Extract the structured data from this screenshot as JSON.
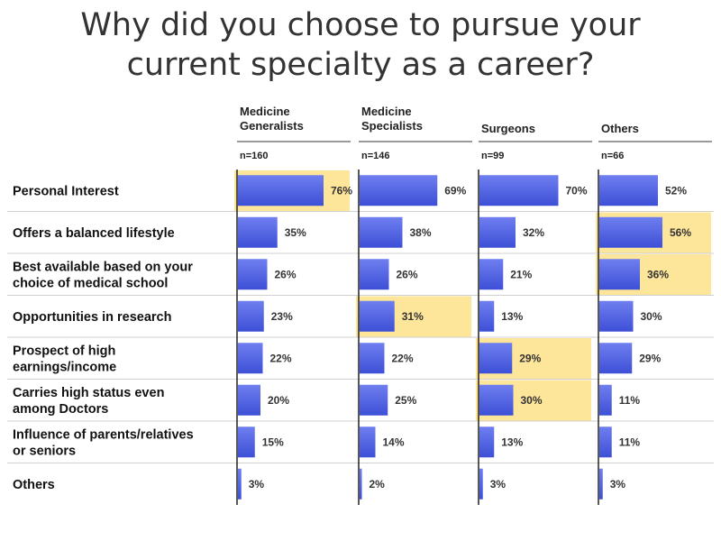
{
  "title_line1": "Why did you choose to pursue your",
  "title_line2": "current specialty as a career?",
  "chart_data": {
    "type": "bar",
    "orientation": "horizontal",
    "title": "Why did you choose to pursue your current specialty as a career?",
    "categories": [
      [
        "Personal Interest"
      ],
      [
        "Offers a balanced lifestyle"
      ],
      [
        "Best available based on your",
        "choice of medical school"
      ],
      [
        "Opportunities in research"
      ],
      [
        "Prospect of high",
        "earnings/income"
      ],
      [
        "Carries high status even",
        "among Doctors"
      ],
      [
        "Influence of parents/relatives",
        "or seniors"
      ],
      [
        "Others"
      ]
    ],
    "series": [
      {
        "name": [
          "Medicine",
          "Generalists"
        ],
        "n_label": "n=160",
        "values": [
          76,
          35,
          26,
          23,
          22,
          20,
          15,
          3
        ],
        "value_labels": [
          "76%",
          "35%",
          "26%",
          "23%",
          "22%",
          "20%",
          "15%",
          "3%"
        ],
        "highlight": [
          0
        ]
      },
      {
        "name": [
          "Medicine",
          "Specialists"
        ],
        "n_label": "n=146",
        "values": [
          69,
          38,
          26,
          31,
          22,
          25,
          14,
          2
        ],
        "value_labels": [
          "69%",
          "38%",
          "26%",
          "31%",
          "22%",
          "25%",
          "14%",
          "2%"
        ],
        "highlight": [
          3
        ]
      },
      {
        "name": [
          "Surgeons"
        ],
        "n_label": "n=99",
        "values": [
          70,
          32,
          21,
          13,
          29,
          30,
          13,
          3
        ],
        "value_labels": [
          "70%",
          "32%",
          "21%",
          "13%",
          "29%",
          "30%",
          "13%",
          "3%"
        ],
        "highlight": [
          4,
          5
        ]
      },
      {
        "name": [
          "Others"
        ],
        "n_label": "n=66",
        "values": [
          52,
          56,
          36,
          30,
          29,
          11,
          11,
          3
        ],
        "value_labels": [
          "52%",
          "56%",
          "36%",
          "30%",
          "29%",
          "11%",
          "11%",
          "3%"
        ],
        "highlight": [
          1,
          2
        ]
      }
    ],
    "xlim": [
      0,
      100
    ],
    "colors": {
      "bar": "#6f7ff0",
      "bar_dark": "#3d4fd6",
      "highlight": "#fde59a",
      "axis": "#222222",
      "separator": "#d0d0d0",
      "header_rule": "#9a9a9a"
    }
  }
}
